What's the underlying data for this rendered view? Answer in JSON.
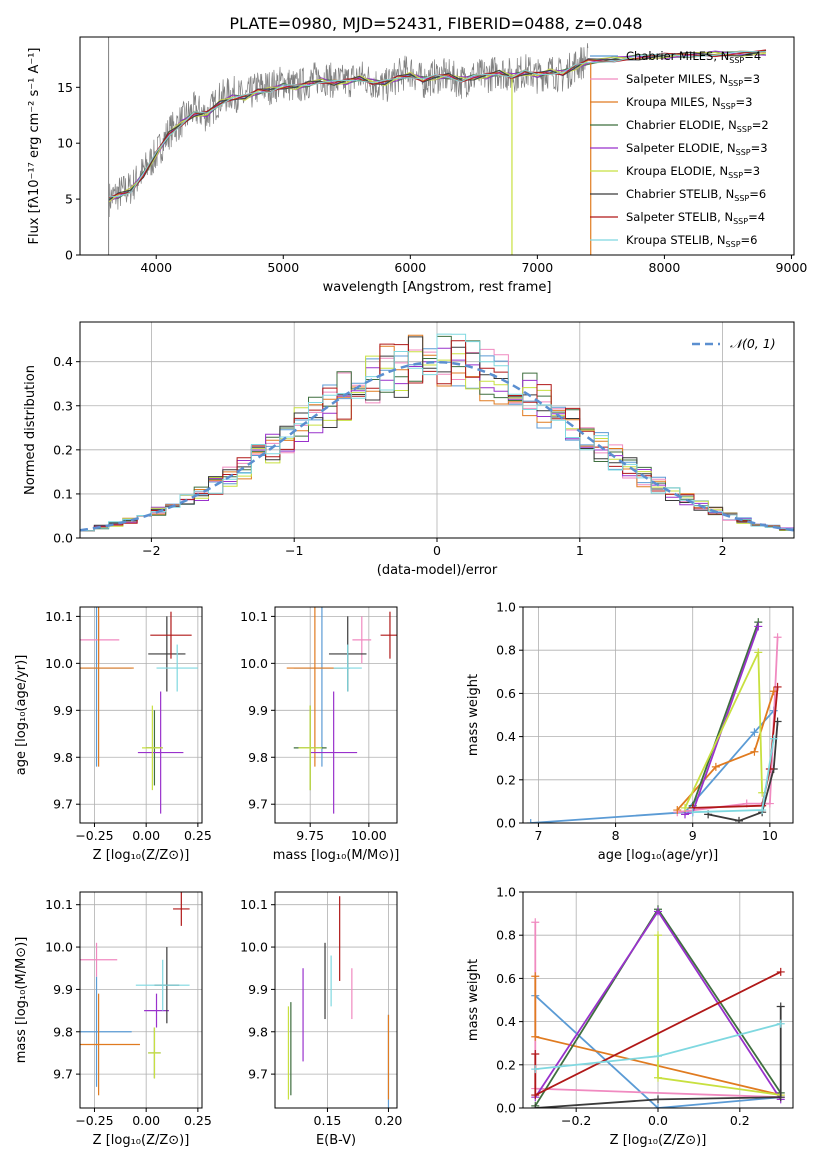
{
  "figure": {
    "title": "PLATE=0980, MJD=52431, FIBERID=0488, z=0.048"
  },
  "models": [
    {
      "name": "Chabrier MILES",
      "nssp": "4",
      "color": "#5b9bd5"
    },
    {
      "name": "Salpeter MILES",
      "nssp": "3",
      "color": "#f08ac0"
    },
    {
      "name": "Kroupa MILES",
      "nssp": "3",
      "color": "#e07b20"
    },
    {
      "name": "Chabrier ELODIE",
      "nssp": "2",
      "color": "#3f6f3f"
    },
    {
      "name": "Salpeter ELODIE",
      "nssp": "3",
      "color": "#9932cc"
    },
    {
      "name": "Kroupa ELODIE",
      "nssp": "3",
      "color": "#c8e040"
    },
    {
      "name": "Chabrier STELIB",
      "nssp": "6",
      "color": "#3a3a3a"
    },
    {
      "name": "Salpeter STELIB",
      "nssp": "4",
      "color": "#b01818"
    },
    {
      "name": "Kroupa STELIB",
      "nssp": "6",
      "color": "#7fd8e0"
    }
  ],
  "chart_data": [
    {
      "id": "spectrum",
      "type": "line",
      "title": "PLATE=0980, MJD=52431, FIBERID=0488, z=0.048",
      "xlabel": "wavelength [Angstrom, rest frame]",
      "ylabel": "Flux [fλ10⁻¹⁷ erg cm⁻² s⁻¹ A⁻¹]",
      "xlim": [
        3400,
        9020
      ],
      "ylim": [
        0,
        19.5
      ],
      "xticks": [
        4000,
        5000,
        6000,
        7000,
        8000,
        9000
      ],
      "yticks": [
        0,
        5,
        10,
        15
      ],
      "grid": false,
      "legend": "right",
      "data_series": {
        "name": "data",
        "color": "#808080",
        "x": [
          3630,
          3700,
          3800,
          3900,
          4000,
          4100,
          4200,
          4300,
          4400,
          4500,
          4600,
          4700,
          4800,
          4900,
          5000,
          5100,
          5200,
          5300,
          5400,
          5500,
          5600,
          5700,
          5800,
          5900,
          6000,
          6100,
          6200,
          6300,
          6400,
          6500,
          6600,
          6700,
          6800,
          6900,
          7000,
          7100,
          7200,
          7300,
          7400
        ],
        "y": [
          5.0,
          5.5,
          6.0,
          7.5,
          9.0,
          11.0,
          12.0,
          13.0,
          12.5,
          14.0,
          14.5,
          14.0,
          15.0,
          15.0,
          15.5,
          15.0,
          15.5,
          16.0,
          15.5,
          15.5,
          16.0,
          15.5,
          15.0,
          16.0,
          16.5,
          15.5,
          16.0,
          16.0,
          15.5,
          16.0,
          16.0,
          16.5,
          16.0,
          16.5,
          16.0,
          16.5,
          16.0,
          17.0,
          17.5
        ]
      },
      "model_curve": {
        "x": [
          3630,
          3700,
          3800,
          3900,
          4000,
          4100,
          4200,
          4300,
          4400,
          4500,
          4600,
          4700,
          4800,
          4900,
          5000,
          5100,
          5200,
          5300,
          5400,
          5500,
          5600,
          5700,
          5800,
          5900,
          6000,
          6100,
          6200,
          6300,
          6400,
          6500,
          6600,
          6700,
          6800,
          6900,
          7000,
          7100,
          7200,
          7300,
          7400,
          7600,
          7800,
          8000,
          8200,
          8400,
          8600,
          8800
        ],
        "y": [
          5.0,
          5.3,
          5.8,
          7.2,
          9.0,
          10.8,
          11.8,
          12.6,
          12.6,
          13.6,
          14.1,
          14.1,
          14.6,
          14.8,
          15.1,
          15.0,
          15.3,
          15.6,
          15.4,
          15.5,
          15.8,
          15.5,
          15.4,
          15.8,
          16.1,
          15.7,
          15.9,
          16.0,
          15.7,
          15.9,
          16.0,
          16.3,
          16.0,
          16.3,
          16.1,
          16.4,
          16.3,
          16.8,
          17.3,
          17.5,
          17.7,
          17.8,
          17.9,
          18.0,
          18.0,
          18.1
        ]
      }
    },
    {
      "id": "residuals",
      "type": "line",
      "xlabel": "(data-model)/error",
      "ylabel": "Normed distribution",
      "xlim": [
        -2.5,
        2.5
      ],
      "ylim": [
        0,
        0.49
      ],
      "xticks": [
        -2,
        -1,
        0,
        1,
        2
      ],
      "yticks": [
        0.0,
        0.1,
        0.2,
        0.3,
        0.4
      ],
      "grid": true,
      "legend": "top-right",
      "legend_label": "𝒩(0, 1)",
      "normal_curve": {
        "mean": 0,
        "sigma": 1,
        "color": "#5b8fd0"
      },
      "histogram": {
        "bin_width": 0.1
      }
    },
    {
      "id": "age-vs-Z",
      "type": "scatter",
      "xlabel": "Z [log₁₀(Z/Z⊙)]",
      "ylabel": "age  [log₁₀(age/yr)]",
      "xlim": [
        -0.32,
        0.27
      ],
      "ylim": [
        9.66,
        10.12
      ],
      "xticks": [
        -0.25,
        0.0,
        0.25
      ],
      "yticks": [
        9.7,
        9.8,
        9.9,
        10.0,
        10.1
      ],
      "xticklabels": [
        "−0.25",
        "0.00",
        "0.25"
      ],
      "grid": true,
      "points": [
        {
          "x": -0.24,
          "y": 9.99,
          "xerr": 0.17,
          "yerr": 0.21
        },
        {
          "x": -0.23,
          "y": 10.05,
          "xerr": 0.1,
          "yerr": 0.05
        },
        {
          "x": -0.23,
          "y": 9.99,
          "xerr": 0.17,
          "yerr": 0.21
        },
        {
          "x": 0.04,
          "y": 9.82,
          "xerr": 0.04,
          "yerr": 0.08
        },
        {
          "x": 0.07,
          "y": 9.81,
          "xerr": 0.11,
          "yerr": 0.13
        },
        {
          "x": 0.03,
          "y": 9.82,
          "xerr": 0.05,
          "yerr": 0.09
        },
        {
          "x": 0.1,
          "y": 10.02,
          "xerr": 0.09,
          "yerr": 0.08
        },
        {
          "x": 0.12,
          "y": 10.06,
          "xerr": 0.1,
          "yerr": 0.05
        },
        {
          "x": 0.15,
          "y": 9.99,
          "xerr": 0.1,
          "yerr": 0.05
        }
      ]
    },
    {
      "id": "age-vs-mass",
      "type": "scatter",
      "xlabel": "mass [log₁₀(M/M⊙)]",
      "ylabel": "",
      "xlim": [
        9.6,
        10.12
      ],
      "ylim": [
        9.66,
        10.12
      ],
      "xticks": [
        9.75,
        10.0
      ],
      "xticklabels": [
        "9.75",
        "10.00"
      ],
      "yticks": [
        9.7,
        9.8,
        9.9,
        10.0,
        10.1
      ],
      "grid": true,
      "points": [
        {
          "x": 9.8,
          "y": 9.99,
          "xerr": 0.12,
          "yerr": 0.21
        },
        {
          "x": 9.97,
          "y": 10.05,
          "xerr": 0.04,
          "yerr": 0.05
        },
        {
          "x": 9.77,
          "y": 9.99,
          "xerr": 0.12,
          "yerr": 0.21
        },
        {
          "x": 9.75,
          "y": 9.82,
          "xerr": 0.07,
          "yerr": 0.09
        },
        {
          "x": 9.85,
          "y": 9.81,
          "xerr": 0.1,
          "yerr": 0.13
        },
        {
          "x": 9.75,
          "y": 9.82,
          "xerr": 0.05,
          "yerr": 0.09
        },
        {
          "x": 9.91,
          "y": 10.02,
          "xerr": 0.08,
          "yerr": 0.08
        },
        {
          "x": 10.09,
          "y": 10.06,
          "xerr": 0.04,
          "yerr": 0.05
        },
        {
          "x": 9.91,
          "y": 9.99,
          "xerr": 0.06,
          "yerr": 0.05
        }
      ]
    },
    {
      "id": "massweight-vs-age",
      "type": "line",
      "xlabel": "age  [log₁₀(age/yr)]",
      "ylabel": "mass weight",
      "xlim": [
        6.8,
        10.3
      ],
      "ylim": [
        0,
        1.0
      ],
      "xticks": [
        7,
        8,
        9,
        10
      ],
      "yticks": [
        0.0,
        0.2,
        0.4,
        0.6,
        0.8,
        1.0
      ],
      "grid": true,
      "series": [
        {
          "x": [
            6.9,
            8.9,
            9.8,
            10.05
          ],
          "y": [
            0.0,
            0.05,
            0.42,
            0.52
          ]
        },
        {
          "x": [
            8.8,
            9.7,
            10.0,
            10.1
          ],
          "y": [
            0.05,
            0.09,
            0.09,
            0.86
          ]
        },
        {
          "x": [
            8.8,
            9.3,
            9.8,
            10.05
          ],
          "y": [
            0.06,
            0.26,
            0.33,
            0.61
          ]
        },
        {
          "x": [
            9.0,
            9.85
          ],
          "y": [
            0.08,
            0.93
          ]
        },
        {
          "x": [
            8.9,
            9.0,
            9.85
          ],
          "y": [
            0.04,
            0.05,
            0.91
          ]
        },
        {
          "x": [
            8.9,
            9.85,
            9.9
          ],
          "y": [
            0.07,
            0.79,
            0.14
          ]
        },
        {
          "x": [
            9.2,
            9.6,
            9.9,
            10.05,
            10.1
          ],
          "y": [
            0.04,
            0.01,
            0.05,
            0.25,
            0.47
          ]
        },
        {
          "x": [
            9.0,
            9.9,
            10.0,
            10.1
          ],
          "y": [
            0.07,
            0.08,
            0.25,
            0.63
          ]
        },
        {
          "x": [
            9.0,
            9.9,
            10.05
          ],
          "y": [
            0.05,
            0.06,
            0.39
          ]
        }
      ]
    },
    {
      "id": "mass-vs-Z",
      "type": "scatter",
      "xlabel": "Z [log₁₀(Z/Z⊙)]",
      "ylabel": "mass [log₁₀(M/M⊙)]",
      "xlim": [
        -0.32,
        0.27
      ],
      "ylim": [
        9.62,
        10.13
      ],
      "xticks": [
        -0.25,
        0.0,
        0.25
      ],
      "xticklabels": [
        "−0.25",
        "0.00",
        "0.25"
      ],
      "yticks": [
        9.7,
        9.8,
        9.9,
        10.0,
        10.1
      ],
      "grid": true,
      "points": [
        {
          "x": -0.24,
          "y": 9.8,
          "xerr": 0.17,
          "yerr": 0.13
        },
        {
          "x": -0.24,
          "y": 9.97,
          "xerr": 0.1,
          "yerr": 0.04
        },
        {
          "x": -0.23,
          "y": 9.77,
          "xerr": 0.2,
          "yerr": 0.12
        },
        {
          "x": 0.04,
          "y": 9.75,
          "xerr": 0.03,
          "yerr": 0.06
        },
        {
          "x": 0.05,
          "y": 9.85,
          "xerr": 0.06,
          "yerr": 0.04
        },
        {
          "x": 0.04,
          "y": 9.75,
          "xerr": 0.03,
          "yerr": 0.06
        },
        {
          "x": 0.1,
          "y": 9.91,
          "xerr": 0.06,
          "yerr": 0.09
        },
        {
          "x": 0.17,
          "y": 10.09,
          "xerr": 0.04,
          "yerr": 0.04
        },
        {
          "x": 0.08,
          "y": 9.91,
          "xerr": 0.13,
          "yerr": 0.06
        }
      ]
    },
    {
      "id": "mass-vs-ebv",
      "type": "scatter",
      "xlabel": "E(B-V)",
      "ylabel": "",
      "xlim": [
        0.107,
        0.207
      ],
      "ylim": [
        9.62,
        10.13
      ],
      "xticks": [
        0.15,
        0.2
      ],
      "xticklabels": [
        "0.15",
        "0.20"
      ],
      "yticks": [
        9.7,
        9.8,
        9.9,
        10.0,
        10.1
      ],
      "grid": true,
      "points": [
        {
          "x": 0.2,
          "y": 9.73,
          "xerr": 0.0,
          "yerr": 0.11
        },
        {
          "x": 0.17,
          "y": 9.89,
          "xerr": 0.0,
          "yerr": 0.06
        },
        {
          "x": 0.2,
          "y": 9.74,
          "xerr": 0.0,
          "yerr": 0.1
        },
        {
          "x": 0.12,
          "y": 9.76,
          "xerr": 0.0,
          "yerr": 0.11
        },
        {
          "x": 0.13,
          "y": 9.84,
          "xerr": 0.0,
          "yerr": 0.11
        },
        {
          "x": 0.118,
          "y": 9.75,
          "xerr": 0.0,
          "yerr": 0.11
        },
        {
          "x": 0.148,
          "y": 9.92,
          "xerr": 0.0,
          "yerr": 0.09
        },
        {
          "x": 0.16,
          "y": 10.02,
          "xerr": 0.0,
          "yerr": 0.1
        },
        {
          "x": 0.153,
          "y": 9.92,
          "xerr": 0.0,
          "yerr": 0.06
        }
      ]
    },
    {
      "id": "massweight-vs-Z",
      "type": "line",
      "xlabel": "Z [log₁₀(Z/Z⊙)]",
      "ylabel": "mass weight",
      "xlim": [
        -0.33,
        0.33
      ],
      "ylim": [
        0,
        1.0
      ],
      "xticks": [
        -0.2,
        0.0,
        0.2
      ],
      "xticklabels": [
        "−0.2",
        "0.0",
        "0.2"
      ],
      "yticks": [
        0.0,
        0.2,
        0.4,
        0.6,
        0.8,
        1.0
      ],
      "grid": true,
      "series": [
        {
          "x": [
            -0.3,
            0.0,
            0.3
          ],
          "y": [
            0.52,
            0.0,
            0.05
          ]
        },
        {
          "x": [
            -0.3,
            -0.3,
            0.3
          ],
          "y": [
            0.86,
            0.09,
            0.05
          ]
        },
        {
          "x": [
            -0.3,
            -0.3,
            0.3
          ],
          "y": [
            0.61,
            0.33,
            0.06
          ]
        },
        {
          "x": [
            -0.3,
            0.0,
            0.3
          ],
          "y": [
            0.01,
            0.92,
            0.07
          ]
        },
        {
          "x": [
            -0.3,
            0.0,
            0.3
          ],
          "y": [
            0.05,
            0.91,
            0.04
          ]
        },
        {
          "x": [
            0.0,
            0.0,
            0.3
          ],
          "y": [
            0.8,
            0.14,
            0.06
          ]
        },
        {
          "x": [
            -0.3,
            0.0,
            0.3,
            0.3
          ],
          "y": [
            0.0,
            0.04,
            0.05,
            0.47
          ]
        },
        {
          "x": [
            -0.3,
            -0.3,
            0.3
          ],
          "y": [
            0.25,
            0.06,
            0.63
          ]
        },
        {
          "x": [
            -0.3,
            0.0,
            0.3
          ],
          "y": [
            0.18,
            0.24,
            0.39
          ]
        }
      ]
    }
  ]
}
